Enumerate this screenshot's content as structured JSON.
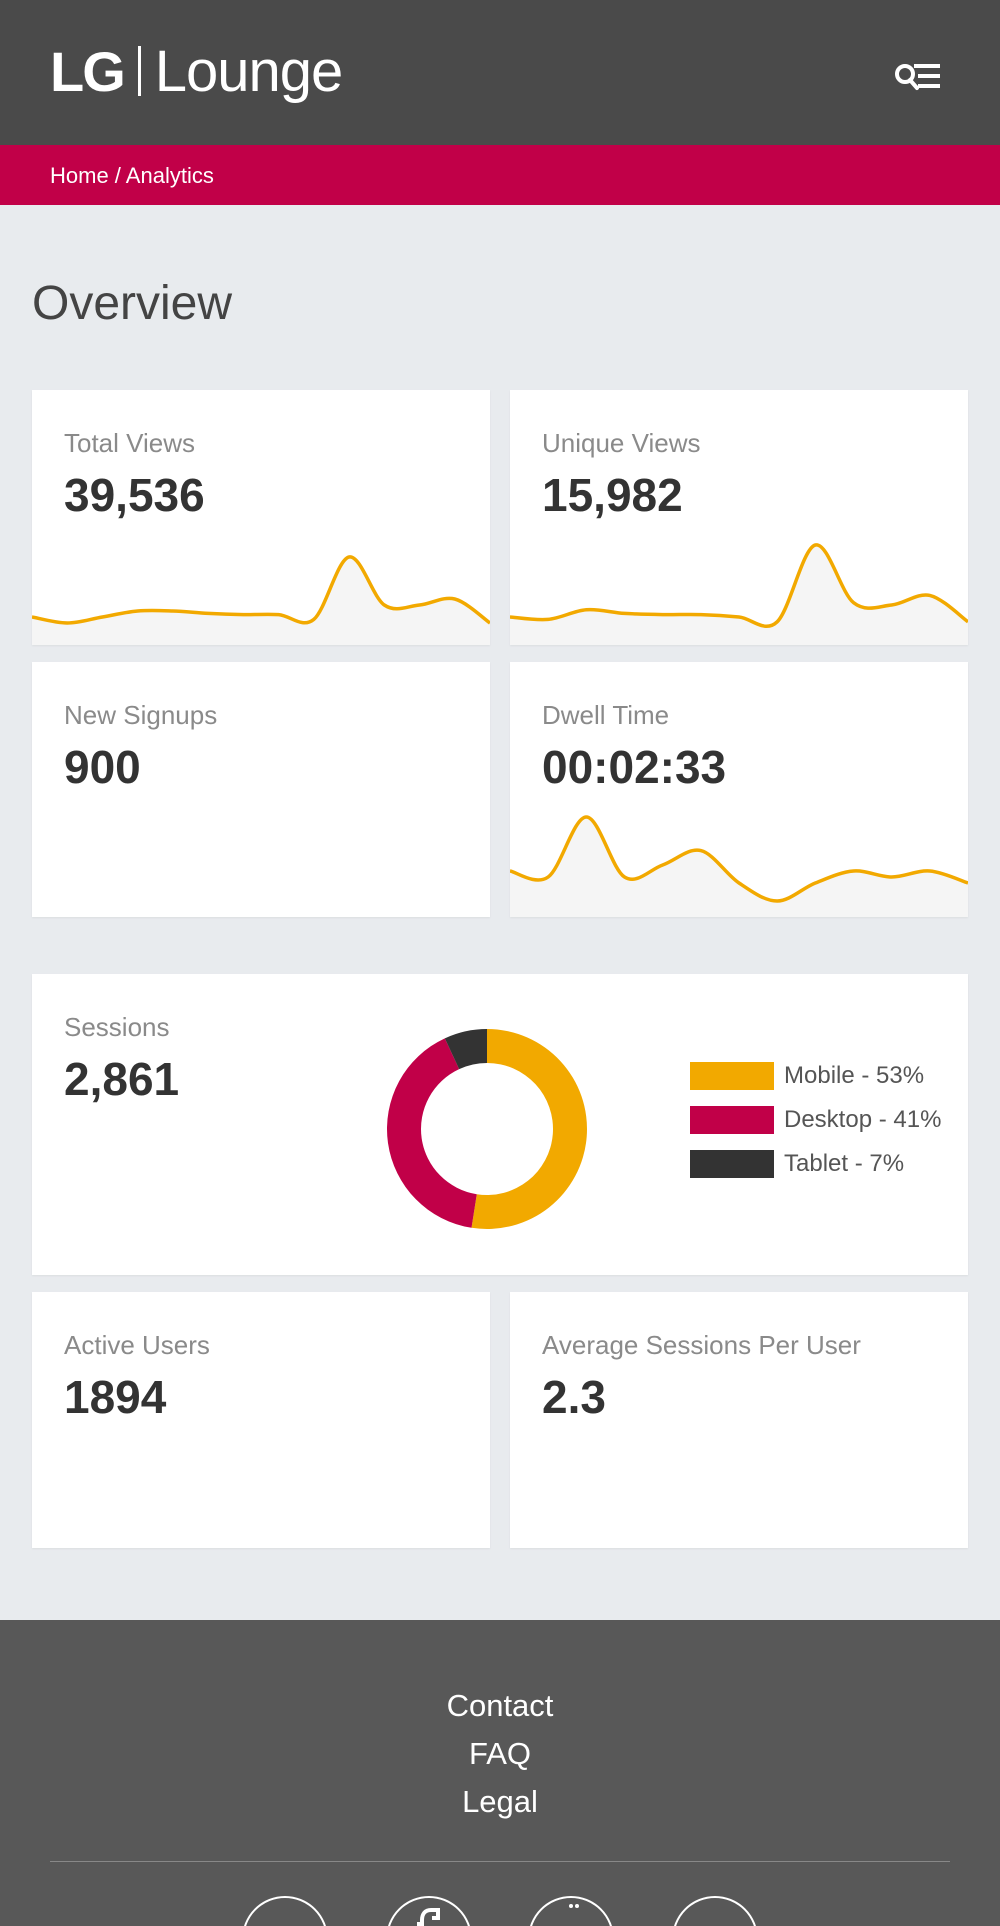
{
  "header": {
    "logo_lg": "LG",
    "logo_lounge": "Lounge",
    "menu_icon": "search-menu-icon"
  },
  "breadcrumb": {
    "text": "Home / Analytics"
  },
  "page": {
    "title": "Overview"
  },
  "cards": {
    "total_views": {
      "label": "Total Views",
      "value": "39,536"
    },
    "unique_views": {
      "label": "Unique Views",
      "value": "15,982"
    },
    "new_signups": {
      "label": "New Signups",
      "value": "900"
    },
    "dwell_time": {
      "label": "Dwell Time",
      "value": "00:02:33"
    },
    "sessions": {
      "label": "Sessions",
      "value": "2,861"
    },
    "active_users": {
      "label": "Active Users",
      "value": "1894"
    },
    "avg_sessions": {
      "label": "Average Sessions Per User",
      "value": "2.3"
    }
  },
  "colors": {
    "accent_yellow": "#f2a900",
    "accent_red": "#c10048",
    "dark": "#333333",
    "header_bg": "#4a4a4a",
    "footer_bg": "#585858"
  },
  "chart_data": [
    {
      "type": "pie",
      "categories": [
        "Mobile",
        "Desktop",
        "Tablet"
      ],
      "values": [
        53,
        41,
        7
      ],
      "colors": [
        "#f2a900",
        "#c10048",
        "#333333"
      ],
      "legend_labels": [
        "Mobile - 53%",
        "Desktop - 41%",
        "Tablet - 7%"
      ],
      "legend": "right"
    },
    {
      "type": "area",
      "values": [
        2,
        1.5,
        2,
        2.5,
        2.5,
        2.3,
        2.2,
        2.2,
        1.8,
        7,
        3,
        3,
        3.5,
        1.5
      ]
    },
    {
      "type": "area",
      "values": [
        2,
        1.8,
        2.6,
        2.3,
        2.2,
        2.2,
        2.0,
        1.6,
        8,
        3.2,
        3,
        3.8,
        1.6
      ]
    },
    {
      "type": "area",
      "values": [
        3.5,
        3,
        8,
        3,
        4,
        5.2,
        2.5,
        1,
        2.5,
        3.5,
        3,
        3.5,
        2.5
      ]
    }
  ],
  "footer": {
    "links": [
      "Contact",
      "FAQ",
      "Legal"
    ],
    "social_icons": [
      "twitter-icon",
      "facebook-icon",
      "instagram-icon",
      "youtube-icon"
    ]
  }
}
